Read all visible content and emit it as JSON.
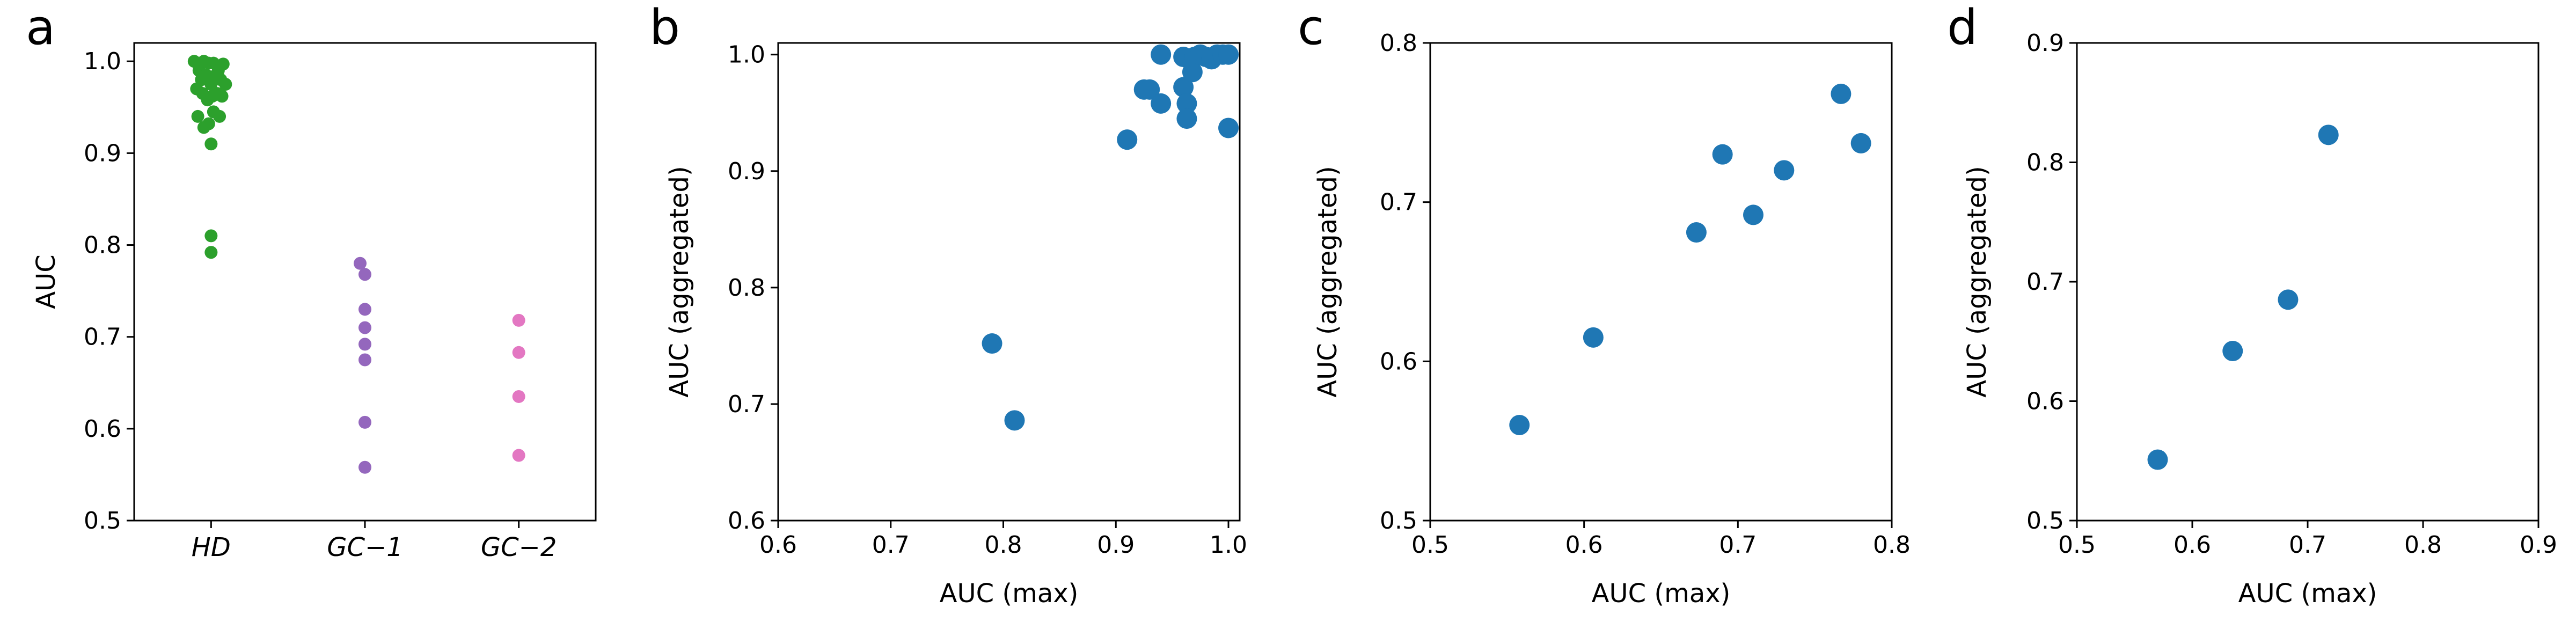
{
  "chart_data": [
    {
      "panel": "a",
      "type": "scatter",
      "subtype": "swarm",
      "categories": [
        "HD",
        "GC−1",
        "GC−2"
      ],
      "ylabel": "AUC",
      "xlabel": "",
      "ylim": [
        0.5,
        1.02
      ],
      "yticks": [
        0.5,
        0.6,
        0.7,
        0.8,
        0.9,
        1.0
      ],
      "ytick_labels": [
        "0.5",
        "0.6",
        "0.7",
        "0.8",
        "0.9",
        "1.0"
      ],
      "series": [
        {
          "category": "HD",
          "color": "#2ca02c",
          "points": [
            [
              -0.7,
              1.0
            ],
            [
              -0.5,
              0.99
            ],
            [
              -0.3,
              1.0
            ],
            [
              -0.1,
              0.998
            ],
            [
              0.1,
              0.998
            ],
            [
              0.3,
              0.99
            ],
            [
              0.5,
              0.997
            ],
            [
              -0.6,
              0.97
            ],
            [
              -0.4,
              0.98
            ],
            [
              -0.2,
              0.985
            ],
            [
              0.0,
              0.975
            ],
            [
              0.2,
              0.985
            ],
            [
              0.4,
              0.98
            ],
            [
              0.6,
              0.975
            ],
            [
              -0.35,
              0.965
            ],
            [
              -0.15,
              0.958
            ],
            [
              0.05,
              0.962
            ],
            [
              0.25,
              0.965
            ],
            [
              0.45,
              0.962
            ],
            [
              -0.55,
              0.94
            ],
            [
              -0.3,
              0.928
            ],
            [
              -0.1,
              0.932
            ],
            [
              0.1,
              0.945
            ],
            [
              0.35,
              0.94
            ],
            [
              0.0,
              0.91
            ],
            [
              0.0,
              0.81
            ],
            [
              0.0,
              0.792
            ]
          ]
        },
        {
          "category": "GC−1",
          "color": "#9467bd",
          "points": [
            [
              -0.2,
              0.78
            ],
            [
              0.0,
              0.768
            ],
            [
              0.0,
              0.73
            ],
            [
              0.0,
              0.71
            ],
            [
              0.0,
              0.692
            ],
            [
              0.0,
              0.675
            ],
            [
              0.0,
              0.607
            ],
            [
              0.0,
              0.558
            ]
          ]
        },
        {
          "category": "GC−2",
          "color": "#e377c2",
          "points": [
            [
              0.0,
              0.718
            ],
            [
              0.0,
              0.683
            ],
            [
              0.0,
              0.635
            ],
            [
              0.0,
              0.571
            ]
          ]
        }
      ]
    },
    {
      "panel": "b",
      "type": "scatter",
      "xlabel": "AUC (max)",
      "ylabel": "AUC (aggregated)",
      "xlim": [
        0.6,
        1.01
      ],
      "ylim": [
        0.6,
        1.01
      ],
      "xticks": [
        0.6,
        0.7,
        0.8,
        0.9,
        1.0
      ],
      "xtick_labels": [
        "0.6",
        "0.7",
        "0.8",
        "0.9",
        "1.0"
      ],
      "yticks": [
        0.6,
        0.7,
        0.8,
        0.9,
        1.0
      ],
      "ytick_labels": [
        "0.6",
        "0.7",
        "0.8",
        "0.9",
        "1.0"
      ],
      "color": "#1f77b4",
      "x": [
        0.79,
        0.81,
        0.91,
        0.925,
        0.93,
        0.94,
        0.94,
        0.96,
        0.96,
        0.963,
        0.963,
        0.968,
        0.97,
        0.975,
        0.98,
        0.985,
        0.99,
        0.995,
        1.0,
        1.0
      ],
      "y": [
        0.752,
        0.686,
        0.927,
        0.97,
        0.97,
        0.958,
        1.0,
        0.998,
        0.972,
        0.958,
        0.945,
        0.985,
        0.998,
        1.0,
        0.998,
        0.996,
        1.0,
        1.0,
        1.0,
        0.937
      ]
    },
    {
      "panel": "c",
      "type": "scatter",
      "xlabel": "AUC (max)",
      "ylabel": "AUC (aggregated)",
      "xlim": [
        0.5,
        0.8
      ],
      "ylim": [
        0.5,
        0.8
      ],
      "xticks": [
        0.5,
        0.6,
        0.7,
        0.8
      ],
      "xtick_labels": [
        "0.5",
        "0.6",
        "0.7",
        "0.8"
      ],
      "yticks": [
        0.5,
        0.6,
        0.7,
        0.8
      ],
      "ytick_labels": [
        "0.5",
        "0.6",
        "0.7",
        "0.8"
      ],
      "color": "#1f77b4",
      "x": [
        0.558,
        0.606,
        0.673,
        0.69,
        0.71,
        0.73,
        0.767,
        0.78
      ],
      "y": [
        0.56,
        0.615,
        0.681,
        0.73,
        0.692,
        0.72,
        0.768,
        0.737
      ]
    },
    {
      "panel": "d",
      "type": "scatter",
      "xlabel": "AUC (max)",
      "ylabel": "AUC (aggregated)",
      "xlim": [
        0.5,
        0.9
      ],
      "ylim": [
        0.5,
        0.9
      ],
      "xticks": [
        0.5,
        0.6,
        0.7,
        0.8,
        0.9
      ],
      "xtick_labels": [
        "0.5",
        "0.6",
        "0.7",
        "0.8",
        "0.9"
      ],
      "yticks": [
        0.5,
        0.6,
        0.7,
        0.8,
        0.9
      ],
      "ytick_labels": [
        "0.5",
        "0.6",
        "0.7",
        "0.8",
        "0.9"
      ],
      "color": "#1f77b4",
      "x": [
        0.57,
        0.635,
        0.683,
        0.718
      ],
      "y": [
        0.551,
        0.642,
        0.685,
        0.823
      ]
    }
  ]
}
